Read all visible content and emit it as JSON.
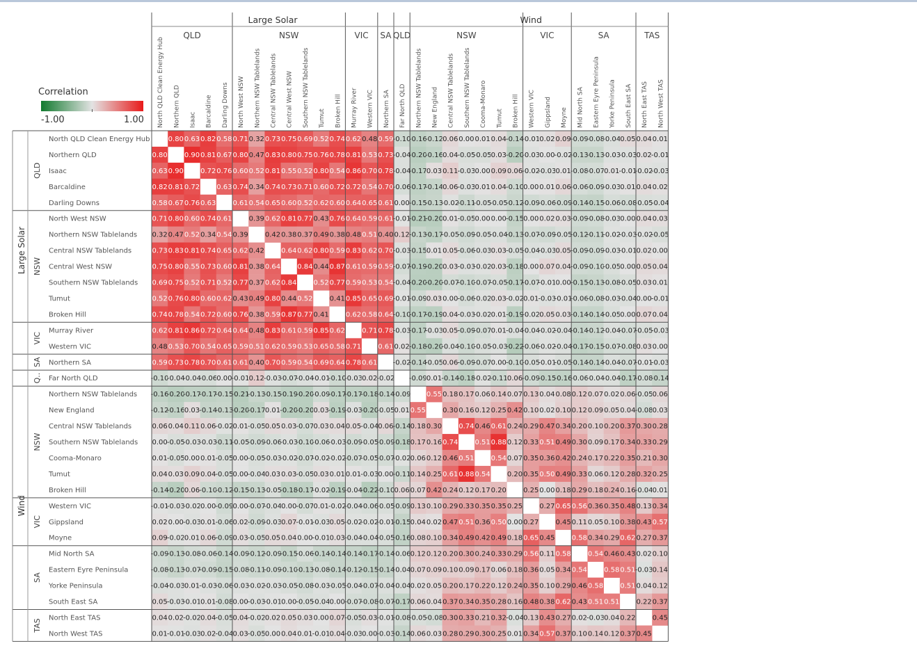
{
  "legend": {
    "title": "Correlation",
    "min_label": "-1.00",
    "max_label": "1.00",
    "colors": {
      "negative": "#117a2e",
      "neutral": "#e3e3e3",
      "positive": "#e81a1a"
    }
  },
  "chart_data": {
    "type": "heatmap",
    "title": "",
    "value_range": [
      -1,
      1
    ],
    "diagonal": "blank",
    "column_technologies": [
      {
        "name": "Large Solar",
        "regions": [
          {
            "name": "QLD",
            "count": 5
          },
          {
            "name": "NSW",
            "count": 7
          },
          {
            "name": "VIC",
            "count": 2
          },
          {
            "name": "SA",
            "count": 1
          }
        ]
      },
      {
        "name": "Wind",
        "regions": [
          {
            "name": "QLD",
            "count": 1
          },
          {
            "name": "NSW",
            "count": 7
          },
          {
            "name": "VIC",
            "count": 3
          },
          {
            "name": "SA",
            "count": 4
          },
          {
            "name": "TAS",
            "count": 2
          }
        ]
      }
    ],
    "row_technologies": [
      {
        "name": "Large Solar",
        "regions": [
          {
            "name": "QLD",
            "count": 5
          },
          {
            "name": "NSW",
            "count": 7
          },
          {
            "name": "VIC",
            "count": 2
          },
          {
            "name": "SA",
            "count": 1
          }
        ]
      },
      {
        "name": "Wind",
        "regions": [
          {
            "name": "Q..",
            "count": 1
          },
          {
            "name": "NSW",
            "count": 7
          },
          {
            "name": "VIC",
            "count": 3
          },
          {
            "name": "SA",
            "count": 4
          },
          {
            "name": "TAS",
            "count": 2
          }
        ]
      }
    ],
    "labels": [
      "North QLD Clean Energy Hub",
      "Northern QLD",
      "Isaac",
      "Barcaldine",
      "Darling Downs",
      "North West NSW",
      "Northern NSW Tablelands",
      "Central NSW Tablelands",
      "Central West NSW",
      "Southern NSW Tablelands",
      "Tumut",
      "Broken Hill",
      "Murray River",
      "Western VIC",
      "Northern SA",
      "Far North QLD",
      "Northern NSW Tablelands",
      "New England",
      "Central NSW Tablelands",
      "Southern NSW Tablelands",
      "Cooma-Monaro",
      "Tumut",
      "Broken Hill",
      "Western VIC",
      "Gippsland",
      "Moyne",
      "Mid North SA",
      "Eastern Eyre Peninsula",
      "Yorke Peninsula",
      "South East SA",
      "North East TAS",
      "North West TAS"
    ],
    "matrix": [
      [
        null,
        0.8,
        0.63,
        0.82,
        0.58,
        0.71,
        0.32,
        0.73,
        0.75,
        0.69,
        0.52,
        0.74,
        0.62,
        0.48,
        0.59,
        -0.1,
        -0.16,
        -0.12,
        0.06,
        0.0,
        0.01,
        0.04,
        -0.14,
        -0.01,
        0.02,
        0.09,
        -0.09,
        -0.08,
        -0.04,
        0.05,
        0.04,
        0.01
      ],
      [
        0.8,
        null,
        0.9,
        0.81,
        0.67,
        0.8,
        0.47,
        0.83,
        0.8,
        0.75,
        0.76,
        0.78,
        0.81,
        0.53,
        0.73,
        -0.04,
        -0.2,
        -0.16,
        0.04,
        -0.05,
        -0.05,
        0.03,
        -0.2,
        -0.03,
        0.0,
        -0.02,
        -0.13,
        -0.13,
        -0.03,
        -0.03,
        0.02,
        -0.01
      ],
      [
        0.63,
        0.9,
        null,
        0.72,
        0.76,
        0.6,
        0.52,
        0.81,
        0.55,
        0.52,
        0.8,
        0.54,
        0.86,
        0.7,
        0.78,
        -0.04,
        -0.17,
        0.03,
        0.11,
        -0.03,
        0.0,
        0.09,
        0.06,
        -0.02,
        -0.03,
        0.01,
        -0.08,
        -0.07,
        0.01,
        -0.01,
        -0.02,
        -0.03
      ],
      [
        0.82,
        0.81,
        0.72,
        null,
        0.63,
        0.74,
        0.34,
        0.74,
        0.73,
        0.71,
        0.6,
        0.72,
        0.72,
        0.54,
        0.7,
        -0.06,
        -0.17,
        -0.14,
        0.06,
        -0.03,
        0.01,
        0.04,
        -0.1,
        0.0,
        0.01,
        0.06,
        -0.06,
        -0.09,
        -0.03,
        0.01,
        0.04,
        0.02
      ],
      [
        0.58,
        0.67,
        0.76,
        0.63,
        null,
        0.61,
        0.54,
        0.65,
        0.6,
        0.52,
        0.62,
        0.6,
        0.64,
        0.65,
        0.61,
        0.0,
        -0.15,
        -0.13,
        -0.02,
        -0.11,
        -0.05,
        -0.05,
        -0.12,
        -0.09,
        -0.06,
        -0.09,
        -0.14,
        -0.15,
        -0.06,
        -0.08,
        -0.05,
        -0.04
      ],
      [
        0.71,
        0.8,
        0.6,
        0.74,
        0.61,
        null,
        0.39,
        0.62,
        0.81,
        0.77,
        0.43,
        0.76,
        0.64,
        0.59,
        0.61,
        -0.01,
        -0.21,
        -0.2,
        0.01,
        -0.05,
        0.0,
        0.0,
        -0.15,
        0.0,
        0.02,
        0.03,
        -0.09,
        -0.08,
        -0.03,
        0.0,
        0.04,
        0.03
      ],
      [
        0.32,
        0.47,
        0.52,
        0.34,
        0.54,
        0.39,
        null,
        0.42,
        0.38,
        0.37,
        0.49,
        0.38,
        0.48,
        0.51,
        0.4,
        0.12,
        -0.13,
        -0.17,
        -0.05,
        -0.09,
        -0.05,
        -0.04,
        -0.13,
        -0.07,
        -0.09,
        -0.05,
        -0.12,
        -0.11,
        -0.02,
        -0.03,
        -0.02,
        -0.05
      ],
      [
        0.73,
        0.83,
        0.81,
        0.74,
        0.65,
        0.62,
        0.42,
        null,
        0.64,
        0.62,
        0.8,
        0.59,
        0.83,
        0.62,
        0.7,
        -0.03,
        -0.15,
        0.01,
        0.05,
        -0.06,
        -0.03,
        0.03,
        -0.05,
        -0.04,
        -0.03,
        0.05,
        -0.09,
        -0.09,
        -0.03,
        -0.01,
        0.02,
        0.0
      ],
      [
        0.75,
        0.8,
        0.55,
        0.73,
        0.6,
        0.81,
        0.38,
        0.64,
        null,
        0.84,
        0.44,
        0.87,
        0.61,
        0.59,
        0.59,
        -0.07,
        -0.19,
        -0.2,
        0.03,
        -0.03,
        -0.02,
        0.03,
        -0.18,
        0.0,
        0.07,
        0.04,
        -0.09,
        -0.1,
        -0.05,
        0.0,
        0.05,
        0.04
      ],
      [
        0.69,
        0.75,
        0.52,
        0.71,
        0.52,
        0.77,
        0.37,
        0.62,
        0.84,
        null,
        0.52,
        0.77,
        0.59,
        0.53,
        0.54,
        -0.04,
        -0.2,
        -0.2,
        -0.07,
        -0.1,
        -0.07,
        -0.05,
        -0.17,
        -0.07,
        -0.01,
        0.0,
        -0.15,
        -0.13,
        -0.08,
        -0.05,
        0.03,
        0.01
      ],
      [
        0.52,
        0.76,
        0.8,
        0.6,
        0.62,
        0.43,
        0.49,
        0.8,
        0.44,
        0.52,
        null,
        0.41,
        0.85,
        0.65,
        0.69,
        -0.01,
        -0.09,
        0.03,
        0.0,
        -0.06,
        -0.02,
        0.03,
        -0.02,
        0.01,
        -0.03,
        -0.01,
        -0.06,
        -0.08,
        -0.03,
        -0.04,
        0.0,
        -0.01
      ],
      [
        0.74,
        0.78,
        0.54,
        0.72,
        0.6,
        0.76,
        0.38,
        0.59,
        0.87,
        0.77,
        0.41,
        null,
        0.62,
        0.58,
        0.64,
        -0.1,
        -0.17,
        -0.19,
        0.04,
        -0.03,
        -0.02,
        0.01,
        -0.19,
        -0.02,
        0.05,
        0.03,
        -0.14,
        -0.14,
        -0.05,
        0.0,
        0.07,
        0.04
      ],
      [
        0.62,
        0.81,
        0.86,
        0.72,
        0.64,
        0.64,
        0.48,
        0.83,
        0.61,
        0.59,
        0.85,
        0.62,
        null,
        0.71,
        0.78,
        -0.03,
        -0.17,
        -0.03,
        0.05,
        -0.09,
        -0.07,
        0.01,
        -0.04,
        -0.04,
        -0.02,
        -0.04,
        -0.14,
        -0.12,
        -0.04,
        -0.07,
        -0.05,
        -0.03
      ],
      [
        0.48,
        0.53,
        0.7,
        0.54,
        0.65,
        0.59,
        0.51,
        0.62,
        0.59,
        0.53,
        0.65,
        0.58,
        0.71,
        null,
        0.61,
        0.02,
        -0.18,
        -0.2,
        -0.04,
        -0.1,
        -0.05,
        -0.03,
        -0.22,
        -0.06,
        -0.02,
        -0.04,
        -0.17,
        -0.15,
        -0.07,
        -0.08,
        0.03,
        0.0
      ],
      [
        0.59,
        0.73,
        0.78,
        0.7,
        0.61,
        0.61,
        0.4,
        0.7,
        0.59,
        0.54,
        0.69,
        0.64,
        0.78,
        0.61,
        null,
        -0.02,
        -0.14,
        -0.05,
        0.06,
        -0.09,
        -0.07,
        0.0,
        -0.1,
        -0.05,
        -0.01,
        -0.05,
        -0.14,
        -0.14,
        -0.04,
        -0.07,
        -0.01,
        -0.03
      ],
      [
        -0.1,
        -0.04,
        -0.04,
        -0.06,
        0.0,
        -0.01,
        0.12,
        -0.03,
        -0.07,
        -0.04,
        -0.01,
        -0.1,
        -0.03,
        0.02,
        -0.02,
        null,
        -0.09,
        0.01,
        -0.14,
        -0.18,
        -0.02,
        -0.11,
        0.06,
        -0.09,
        -0.15,
        -0.16,
        -0.06,
        -0.04,
        -0.04,
        -0.17,
        -0.08,
        -0.14
      ],
      [
        -0.16,
        -0.2,
        -0.17,
        -0.17,
        -0.15,
        -0.21,
        -0.13,
        -0.15,
        -0.19,
        -0.2,
        -0.09,
        -0.17,
        -0.17,
        -0.18,
        -0.14,
        -0.09,
        null,
        0.55,
        0.18,
        0.17,
        0.06,
        0.14,
        0.07,
        0.13,
        0.04,
        0.08,
        0.12,
        0.07,
        0.02,
        0.06,
        -0.05,
        0.06
      ],
      [
        -0.12,
        -0.16,
        0.03,
        -0.14,
        -0.13,
        -0.2,
        -0.17,
        0.01,
        -0.2,
        -0.2,
        0.03,
        -0.19,
        -0.03,
        -0.2,
        -0.05,
        0.01,
        0.55,
        null,
        0.3,
        0.16,
        0.12,
        0.25,
        0.42,
        0.1,
        0.02,
        0.1,
        0.12,
        0.09,
        0.05,
        0.04,
        -0.08,
        0.03
      ],
      [
        0.06,
        0.04,
        0.11,
        0.06,
        -0.02,
        0.01,
        -0.05,
        0.05,
        0.03,
        -0.07,
        0.03,
        0.04,
        0.05,
        -0.04,
        0.06,
        -0.14,
        0.18,
        0.3,
        null,
        0.74,
        0.46,
        0.61,
        0.24,
        0.29,
        0.47,
        0.34,
        0.2,
        0.1,
        0.2,
        0.37,
        0.3,
        0.28
      ],
      [
        0.0,
        -0.05,
        -0.03,
        -0.03,
        -0.11,
        -0.05,
        -0.09,
        -0.06,
        -0.03,
        -0.1,
        -0.06,
        -0.03,
        -0.09,
        -0.05,
        -0.09,
        -0.18,
        0.17,
        0.16,
        0.74,
        null,
        0.51,
        0.88,
        0.12,
        0.33,
        0.51,
        0.49,
        0.3,
        0.09,
        0.17,
        0.34,
        0.33,
        0.29
      ],
      [
        0.01,
        -0.05,
        0.0,
        0.01,
        -0.05,
        0.0,
        -0.05,
        -0.03,
        -0.02,
        -0.07,
        -0.02,
        -0.02,
        -0.07,
        -0.05,
        -0.07,
        -0.02,
        0.06,
        0.12,
        0.46,
        0.51,
        null,
        0.54,
        0.07,
        0.35,
        0.36,
        0.42,
        0.24,
        0.17,
        0.22,
        0.35,
        0.21,
        0.3
      ],
      [
        0.04,
        0.03,
        0.09,
        0.04,
        -0.05,
        0.0,
        -0.04,
        0.03,
        0.03,
        -0.05,
        0.03,
        0.01,
        0.01,
        -0.03,
        0.0,
        -0.11,
        0.14,
        0.25,
        0.61,
        0.88,
        0.54,
        null,
        0.2,
        0.35,
        0.5,
        0.49,
        0.33,
        0.06,
        0.12,
        0.28,
        0.32,
        0.25
      ],
      [
        -0.14,
        -0.2,
        0.06,
        -0.1,
        -0.12,
        -0.15,
        -0.13,
        -0.05,
        -0.18,
        -0.17,
        -0.02,
        -0.19,
        -0.04,
        -0.22,
        -0.1,
        0.06,
        0.07,
        0.42,
        0.24,
        0.12,
        0.17,
        0.2,
        null,
        0.25,
        0.0,
        0.18,
        0.29,
        0.18,
        0.24,
        0.16,
        -0.04,
        0.01
      ],
      [
        -0.01,
        -0.03,
        -0.02,
        0.0,
        -0.09,
        0.0,
        -0.07,
        -0.04,
        0.0,
        -0.07,
        0.01,
        -0.02,
        -0.04,
        -0.06,
        -0.05,
        -0.09,
        0.13,
        0.1,
        0.29,
        0.33,
        0.35,
        0.35,
        0.25,
        null,
        0.27,
        0.65,
        0.56,
        0.36,
        0.35,
        0.48,
        0.13,
        0.34
      ],
      [
        0.02,
        0.0,
        -0.03,
        0.01,
        -0.06,
        0.02,
        -0.09,
        -0.03,
        0.07,
        -0.01,
        -0.03,
        0.05,
        -0.02,
        -0.02,
        -0.01,
        -0.15,
        0.04,
        0.02,
        0.47,
        0.51,
        0.36,
        0.5,
        0.0,
        0.27,
        null,
        0.45,
        0.11,
        0.05,
        0.1,
        0.38,
        0.43,
        0.57
      ],
      [
        0.09,
        -0.02,
        0.01,
        0.06,
        -0.09,
        0.03,
        -0.05,
        0.05,
        0.04,
        0.0,
        -0.01,
        0.03,
        -0.04,
        -0.04,
        -0.05,
        -0.16,
        0.08,
        0.1,
        0.34,
        0.49,
        0.42,
        0.49,
        0.18,
        0.65,
        0.45,
        null,
        0.58,
        0.34,
        0.29,
        0.62,
        0.27,
        0.37
      ],
      [
        -0.09,
        -0.13,
        -0.08,
        -0.06,
        -0.14,
        -0.09,
        -0.12,
        -0.09,
        -0.15,
        -0.06,
        -0.14,
        -0.14,
        -0.14,
        -0.17,
        -0.14,
        -0.06,
        0.12,
        0.12,
        0.2,
        0.3,
        0.24,
        0.33,
        0.29,
        0.56,
        0.11,
        0.58,
        null,
        0.54,
        0.46,
        0.43,
        0.02,
        0.1
      ],
      [
        -0.08,
        -0.13,
        -0.07,
        -0.09,
        -0.15,
        -0.08,
        -0.11,
        -0.09,
        -0.1,
        -0.13,
        -0.08,
        -0.14,
        -0.12,
        -0.15,
        -0.14,
        -0.04,
        0.07,
        0.09,
        0.1,
        0.09,
        0.17,
        0.06,
        0.18,
        0.36,
        0.05,
        0.34,
        0.54,
        null,
        0.58,
        0.51,
        -0.03,
        0.14
      ],
      [
        -0.04,
        -0.03,
        0.01,
        -0.03,
        -0.06,
        -0.03,
        -0.02,
        -0.03,
        -0.05,
        -0.08,
        -0.03,
        -0.05,
        -0.04,
        -0.07,
        -0.04,
        -0.04,
        0.02,
        0.05,
        0.2,
        0.17,
        0.22,
        0.12,
        0.24,
        0.35,
        0.1,
        0.29,
        0.46,
        0.58,
        null,
        0.51,
        0.04,
        0.12
      ],
      [
        0.05,
        -0.03,
        -0.01,
        0.01,
        -0.08,
        0.0,
        -0.03,
        -0.01,
        0.0,
        -0.05,
        -0.04,
        0.0,
        -0.07,
        -0.08,
        -0.07,
        -0.17,
        0.06,
        0.04,
        0.37,
        0.34,
        0.35,
        0.28,
        0.16,
        0.48,
        0.38,
        0.62,
        0.43,
        0.51,
        0.51,
        null,
        0.22,
        0.37
      ],
      [
        0.04,
        0.02,
        -0.02,
        0.04,
        -0.05,
        0.04,
        -0.02,
        0.02,
        0.05,
        0.03,
        0.0,
        0.07,
        -0.05,
        0.03,
        -0.01,
        -0.08,
        -0.05,
        -0.08,
        0.3,
        0.33,
        0.21,
        0.32,
        -0.04,
        0.13,
        0.43,
        0.27,
        0.02,
        -0.03,
        0.04,
        0.22,
        null,
        0.45
      ],
      [
        0.01,
        -0.01,
        -0.03,
        0.02,
        -0.04,
        0.03,
        -0.05,
        0.0,
        0.04,
        0.01,
        -0.01,
        0.04,
        -0.03,
        0.0,
        -0.03,
        -0.14,
        0.06,
        0.03,
        0.28,
        0.29,
        0.3,
        0.25,
        0.01,
        0.34,
        0.57,
        0.37,
        0.1,
        0.14,
        0.12,
        0.37,
        0.45,
        null
      ]
    ]
  }
}
